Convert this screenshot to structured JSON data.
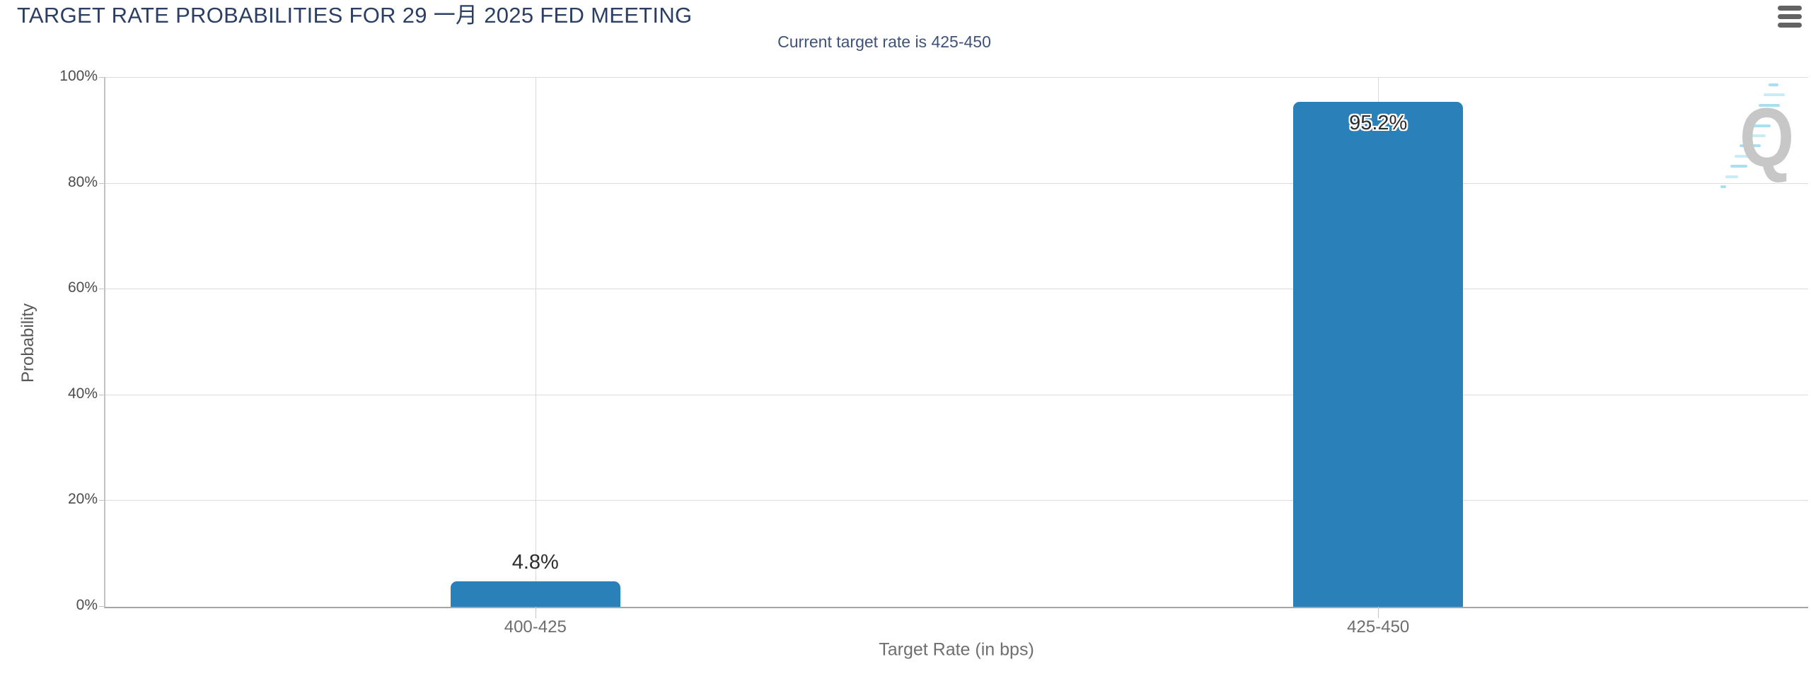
{
  "header": {
    "title": "TARGET RATE PROBABILITIES FOR 29 一月 2025 FED MEETING",
    "menu_icon": "hamburger-icon"
  },
  "subtitle": "Current target rate is 425-450",
  "watermark": {
    "letter": "Q",
    "accent_color": "#a9dff0",
    "letter_color": "#c7c7c7"
  },
  "chart_data": {
    "type": "bar",
    "title": "TARGET RATE PROBABILITIES FOR 29 一月 2025 FED MEETING",
    "subtitle": "Current target rate is 425-450",
    "categories": [
      "400-425",
      "425-450"
    ],
    "values": [
      4.8,
      95.2
    ],
    "value_labels": [
      "4.8%",
      "95.2%"
    ],
    "xlabel": "Target Rate (in bps)",
    "ylabel": "Probability",
    "ylim": [
      0,
      100
    ],
    "yticks": [
      0,
      20,
      40,
      60,
      80,
      100
    ],
    "ytick_labels": [
      "0%",
      "20%",
      "40%",
      "60%",
      "80%",
      "100%"
    ],
    "grid": true,
    "legend_position": "none",
    "bar_color": "#2a80b9",
    "label_color": "#2d2d2d"
  }
}
